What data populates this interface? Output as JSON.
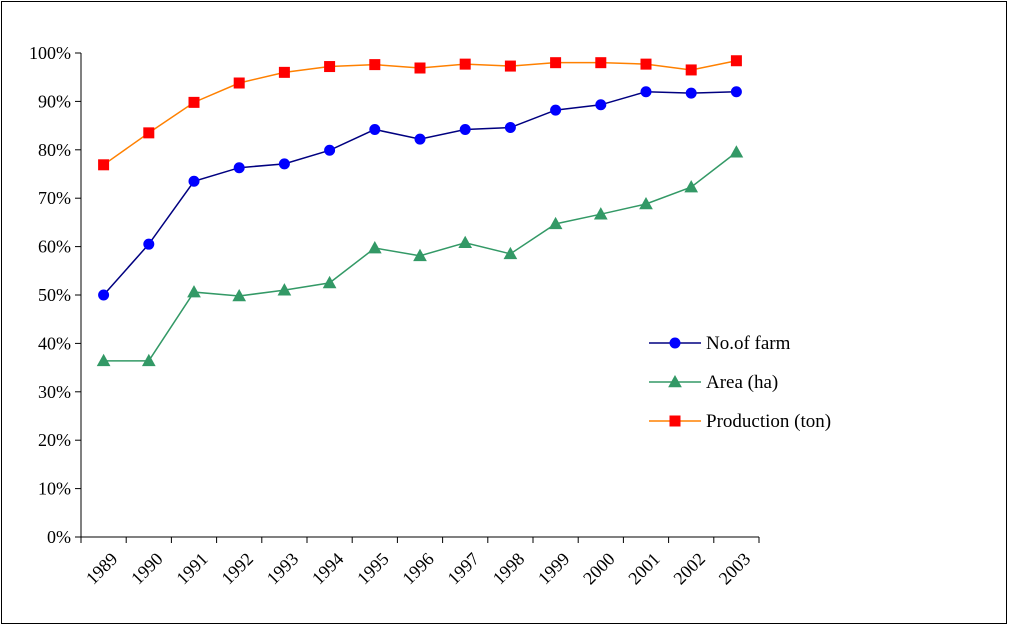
{
  "chart_data": {
    "type": "line",
    "categories": [
      "1989",
      "1990",
      "1991",
      "1992",
      "1993",
      "1994",
      "1995",
      "1996",
      "1997",
      "1998",
      "1999",
      "2000",
      "2001",
      "2002",
      "2003"
    ],
    "y_ticks": [
      "0%",
      "10%",
      "20%",
      "30%",
      "40%",
      "50%",
      "60%",
      "70%",
      "80%",
      "90%",
      "100%"
    ],
    "ylim": [
      0,
      100
    ],
    "grid": false,
    "legend_position": "right",
    "series": [
      {
        "name": "No.of farm",
        "color": "#0000ff",
        "line_color": "#000080",
        "marker": "circle",
        "values": [
          50,
          60.5,
          73.5,
          76.3,
          77.1,
          79.9,
          84.2,
          82.2,
          84.2,
          84.6,
          88.2,
          89.3,
          92,
          91.7,
          92
        ]
      },
      {
        "name": "Area (ha)",
        "color": "#339966",
        "line_color": "#339966",
        "marker": "triangle",
        "values": [
          36.4,
          36.4,
          50.6,
          49.8,
          51,
          52.5,
          59.7,
          58.1,
          60.8,
          58.5,
          64.7,
          66.7,
          68.8,
          72.3,
          79.5
        ]
      },
      {
        "name": "Production (ton)",
        "color": "#ff0000",
        "line_color": "#ff8000",
        "marker": "square",
        "values": [
          76.9,
          83.5,
          89.8,
          93.8,
          96,
          97.2,
          97.6,
          96.9,
          97.7,
          97.3,
          98,
          98,
          97.7,
          96.5,
          98.4
        ]
      }
    ]
  }
}
